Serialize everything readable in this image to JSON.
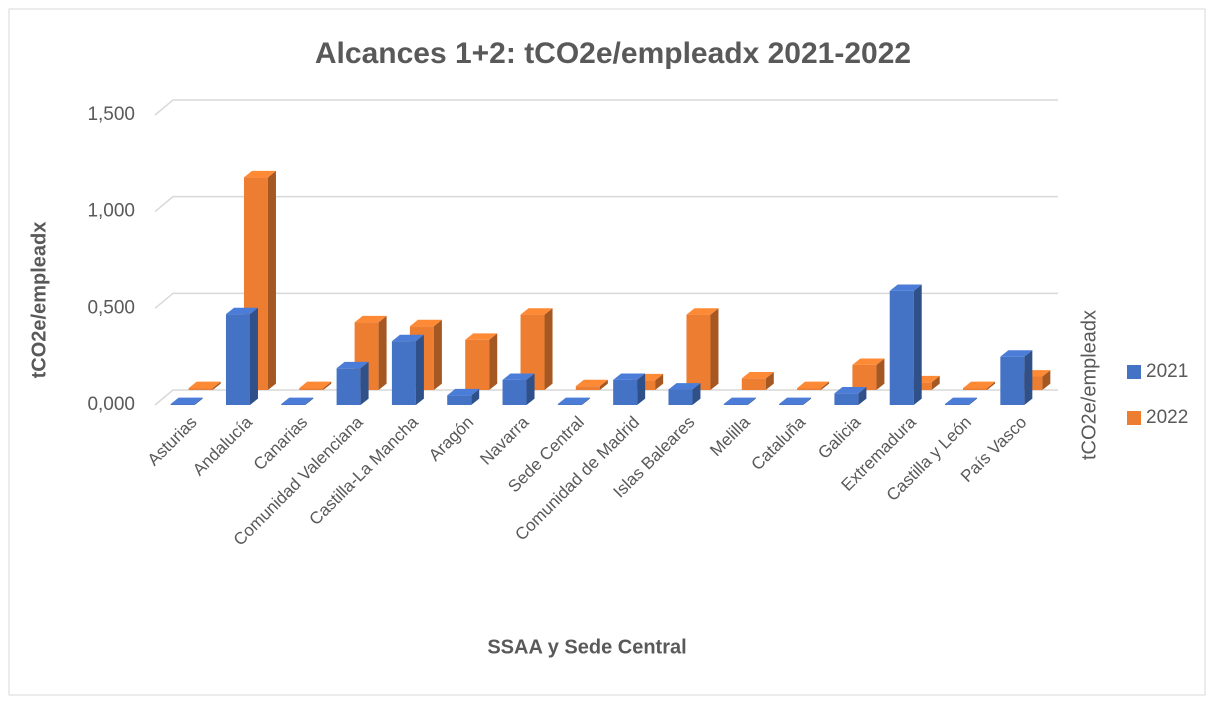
{
  "chart_data": {
    "type": "bar3d",
    "title": "Alcances 1+2: tCO2e/empleadx 2021-2022",
    "x_label": "SSAA y Sede Central",
    "y_label": "tCO2e/empleadx",
    "y2_label": "tCO2e/empleadx",
    "categories": [
      "Asturias",
      "Andalucía",
      "Canarias",
      "Comunidad Valenciana",
      "Castilla-La Mancha",
      "Aragón",
      "Navarra",
      "Sede Central",
      "Comunidad de Madrid",
      "Islas Baleares",
      "Melilla",
      "Cataluña",
      "Galicia",
      "Extremadura",
      "Castilla y León",
      "País Vasco"
    ],
    "series": [
      {
        "name": "2021",
        "color": "#4472c4",
        "values": [
          0.005,
          0.47,
          0.005,
          0.19,
          0.33,
          0.05,
          0.13,
          0.005,
          0.13,
          0.08,
          0.005,
          0.005,
          0.06,
          0.59,
          0.005,
          0.25
        ]
      },
      {
        "name": "2022",
        "color": "#ed7d31",
        "values": [
          0.01,
          1.1,
          0.01,
          0.35,
          0.33,
          0.26,
          0.39,
          0.02,
          0.05,
          0.39,
          0.06,
          0.01,
          0.13,
          0.04,
          0.01,
          0.07
        ]
      }
    ],
    "ylim": [
      0,
      1.5
    ],
    "yticks": [
      {
        "value": 0,
        "label": "0,000"
      },
      {
        "value": 0.5,
        "label": "0,500"
      },
      {
        "value": 1,
        "label": "1,000"
      },
      {
        "value": 1.5,
        "label": "1,500"
      }
    ],
    "grid": true,
    "legend": "right"
  }
}
